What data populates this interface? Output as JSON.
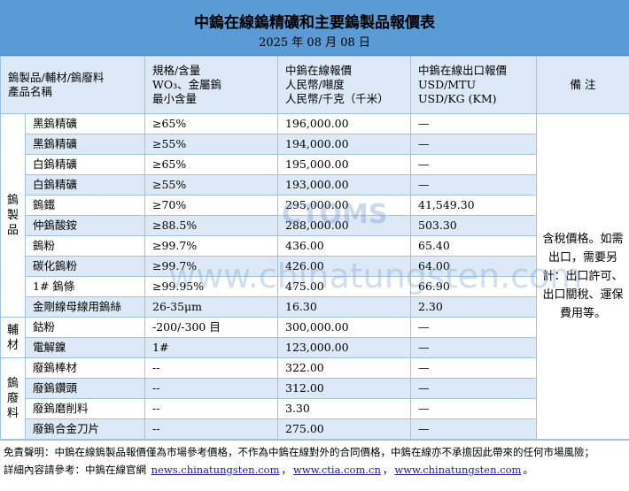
{
  "title": "中鎢在線鎢精礦和主要鎢製品報價表",
  "date": "2025 年 08 月 08 日",
  "header": {
    "name": [
      "鎢製品/輔材/鎢廢料",
      "產品名稱"
    ],
    "spec": [
      "規格/含量",
      "WO₃、金屬鎢",
      "最小含量"
    ],
    "price": [
      "中鎢在線報價",
      "人民幣/噸度",
      "人民幣/千克（千米）"
    ],
    "export": [
      "中鎢在線出口報價",
      "USD/MTU",
      "USD/KG (KM)"
    ],
    "note": "備 注"
  },
  "groups": [
    {
      "category": "鎢製品",
      "rows": [
        {
          "name": "黑鎢精礦",
          "spec": "≥65%",
          "price": "196,000.00",
          "export": "—"
        },
        {
          "name": "黑鎢精礦",
          "spec": "≥55%",
          "price": "194,000.00",
          "export": "—"
        },
        {
          "name": "白鎢精礦",
          "spec": "≥65%",
          "price": "195,000.00",
          "export": "—"
        },
        {
          "name": "白鎢精礦",
          "spec": "≥55%",
          "price": "193,000.00",
          "export": "—"
        },
        {
          "name": "鎢鐵",
          "spec": "≥70%",
          "price": "295,000.00",
          "export": "41,549.30"
        },
        {
          "name": "仲鎢酸銨",
          "spec": "≥88.5%",
          "price": "288,000.00",
          "export": "503.30"
        },
        {
          "name": "鎢粉",
          "spec": "≥99.7%",
          "price": "436.00",
          "export": "65.40"
        },
        {
          "name": "碳化鎢粉",
          "spec": "≥99.7%",
          "price": "426.00",
          "export": "64.00"
        },
        {
          "name": "1# 鎢條",
          "spec": "≥99.95%",
          "price": "475.00",
          "export": "66.90"
        },
        {
          "name": "金剛線母線用鎢絲",
          "spec": "26-35μm",
          "price": "16.30",
          "export": "2.30"
        }
      ]
    },
    {
      "category": "輔材",
      "rows": [
        {
          "name": "鈷粉",
          "spec": "-200/-300 目",
          "price": "300,000.00",
          "export": "—"
        },
        {
          "name": "電解鎳",
          "spec": "1#",
          "price": "123,000.00",
          "export": "—"
        }
      ]
    },
    {
      "category": "鎢廢料",
      "rows": [
        {
          "name": "廢鎢棒材",
          "spec": "--",
          "price": "322.00",
          "export": "—"
        },
        {
          "name": "廢鎢鑽頭",
          "spec": "--",
          "price": "312.00",
          "export": "—"
        },
        {
          "name": "廢鎢磨削料",
          "spec": "--",
          "price": "3.30",
          "export": "—"
        },
        {
          "name": "廢鎢合金刀片",
          "spec": "--",
          "price": "275.00",
          "export": "—"
        }
      ]
    }
  ],
  "note": "含稅價格。如需出口，需要另計：出口許可、出口關稅、運保費用等。",
  "footer": {
    "disclaimer": "免責聲明：中鎢在線鎢製品報價僅為市場參考價格，不作為中鎢在線對外的合同價格，中鎢在線亦不承擔因此帶來的任何市場風險；",
    "more": "詳細內容請參考：中鎢在線官網",
    "links": [
      "news.chinatungsten.com",
      "www.ctia.com.cn",
      "www.chinatungsten.com"
    ],
    "sep": "，",
    "end": "。"
  },
  "watermark": {
    "logo": "CTOMS",
    "text": "www.chinatungsten.com"
  },
  "colors": {
    "header_bg": "#5b9bd5",
    "alt_row": "#dde9f6",
    "border": "#9ec3e6"
  }
}
